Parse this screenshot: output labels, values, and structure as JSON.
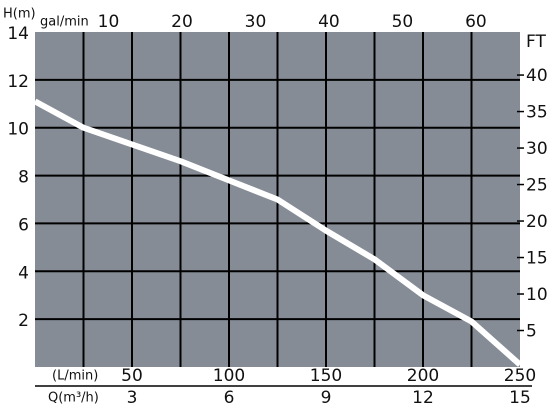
{
  "chart_data": {
    "type": "line",
    "y_label": "H(m)",
    "x3_label": "gal/min",
    "y2_label": "FT",
    "x2_label": "(L/min)",
    "x_label": "Q(m³/h)",
    "x": [
      0,
      1.5,
      3,
      4.5,
      6,
      7.5,
      9,
      10.5,
      12,
      13.5,
      15
    ],
    "series": [
      {
        "color": "#ffffff",
        "values": [
          11.1,
          10.0,
          9.3,
          8.6,
          7.8,
          7.0,
          5.7,
          4.5,
          3.0,
          1.9,
          0.1
        ]
      }
    ],
    "xlim": [
      0,
      15
    ],
    "xticks": [
      3,
      6,
      9,
      12,
      15
    ],
    "x_grid": [
      1.5,
      3,
      4.5,
      6,
      7.5,
      9,
      10.5,
      12,
      13.5
    ],
    "x2lim": [
      0,
      250
    ],
    "x2ticks": [
      50,
      100,
      150,
      200,
      250
    ],
    "x3lim": [
      0,
      66
    ],
    "x3ticks": [
      10,
      20,
      30,
      40,
      50,
      60
    ],
    "ylim": [
      0,
      14
    ],
    "yticks": [
      2,
      4,
      6,
      8,
      10,
      12,
      14
    ],
    "y2lim": [
      0,
      45.9
    ],
    "y2ticks": [
      5,
      10,
      15,
      20,
      25,
      30,
      35,
      40
    ],
    "grid": true,
    "background": "#868c95"
  }
}
